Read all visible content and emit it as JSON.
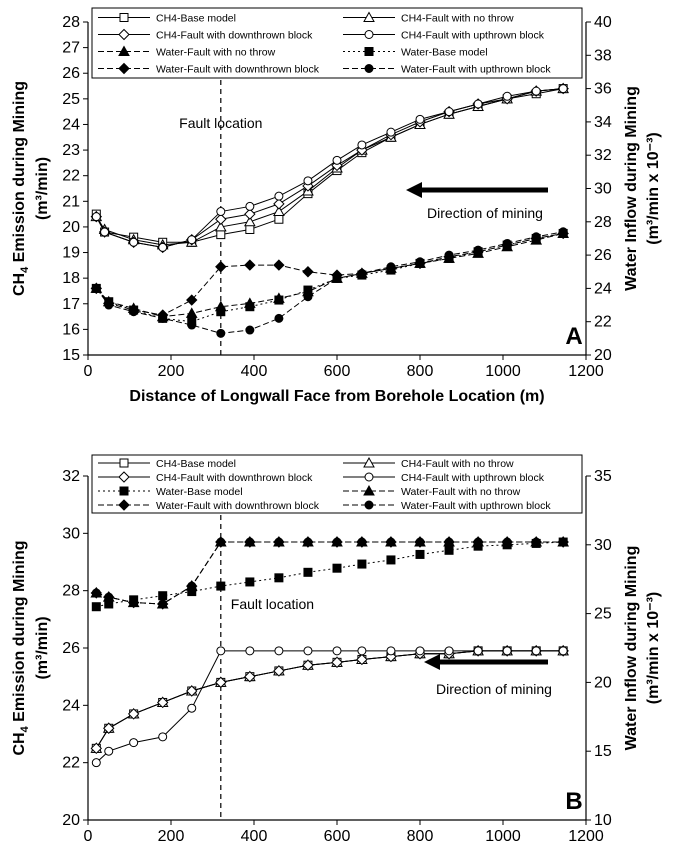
{
  "chart_data": [
    {
      "type": "line",
      "panel_label": "A",
      "xlabel": "Distance of Longwall Face from Borehole Location (m)",
      "ylabel_main": "CH",
      "ylabel_sub": "4",
      "ylabel_rest": " Emission during Mining",
      "ylabel_line2": "(m³/min)",
      "y2label": "Water Inflow during Mining",
      "y2label_line2": "(m³/min x 10⁻³)",
      "xlim": [
        0,
        1200
      ],
      "ylim": [
        15,
        28
      ],
      "y2lim": [
        20,
        40
      ],
      "xticks": [
        "0",
        "200",
        "400",
        "600",
        "800",
        "1000",
        "1200"
      ],
      "yticks": [
        "15",
        "16",
        "17",
        "18",
        "19",
        "20",
        "21",
        "22",
        "23",
        "24",
        "25",
        "26",
        "27",
        "28"
      ],
      "y2ticks": [
        "20",
        "22",
        "24",
        "26",
        "28",
        "30",
        "32",
        "34",
        "36",
        "38",
        "40"
      ],
      "fault_x": 320,
      "fault_label": "Fault location",
      "direction_label": "Direction of mining",
      "grid": false,
      "legend_position": "top",
      "series": [
        {
          "name": "CH4-Base model",
          "axis": "left",
          "marker": "square-open",
          "dash": "solid",
          "x": [
            20,
            40,
            110,
            180,
            250,
            320,
            390,
            460,
            530,
            600,
            660,
            730,
            800,
            870,
            940,
            1010,
            1080,
            1145
          ],
          "values": [
            20.5,
            19.8,
            19.6,
            19.4,
            19.4,
            19.7,
            19.9,
            20.3,
            21.3,
            22.2,
            22.9,
            23.5,
            24.0,
            24.4,
            24.7,
            25.0,
            25.2,
            25.4
          ]
        },
        {
          "name": "CH4-Fault with no throw",
          "axis": "left",
          "marker": "triangle-open",
          "dash": "solid",
          "x": [
            20,
            40,
            110,
            180,
            250,
            320,
            390,
            460,
            530,
            600,
            660,
            730,
            800,
            870,
            940,
            1010,
            1080,
            1145
          ],
          "values": [
            20.4,
            19.9,
            19.5,
            19.3,
            19.4,
            20.0,
            20.2,
            20.6,
            21.4,
            22.3,
            23.0,
            23.5,
            24.0,
            24.4,
            24.7,
            25.0,
            25.3,
            25.4
          ]
        },
        {
          "name": "CH4-Fault with downthrown block",
          "axis": "left",
          "marker": "diamond-open",
          "dash": "solid",
          "x": [
            20,
            40,
            110,
            180,
            250,
            320,
            390,
            460,
            530,
            600,
            660,
            730,
            800,
            870,
            940,
            1010,
            1080,
            1145
          ],
          "values": [
            20.4,
            19.8,
            19.4,
            19.2,
            19.5,
            20.3,
            20.5,
            20.9,
            21.6,
            22.4,
            23.0,
            23.6,
            24.1,
            24.5,
            24.8,
            25.0,
            25.3,
            25.4
          ]
        },
        {
          "name": "CH4-Fault with upthrown block",
          "axis": "left",
          "marker": "circle-open",
          "dash": "solid",
          "x": [
            20,
            40,
            110,
            180,
            250,
            320,
            390,
            460,
            530,
            600,
            660,
            730,
            800,
            870,
            940,
            1010,
            1080,
            1145
          ],
          "values": [
            20.4,
            19.8,
            19.4,
            19.2,
            19.5,
            20.6,
            20.8,
            21.2,
            21.8,
            22.6,
            23.2,
            23.7,
            24.2,
            24.5,
            24.8,
            25.1,
            25.3,
            25.4
          ]
        },
        {
          "name": "Water-Fault with no throw",
          "axis": "right",
          "marker": "triangle-filled",
          "dash": "dashed",
          "x": [
            20,
            50,
            110,
            180,
            250,
            320,
            390,
            460,
            530,
            600,
            660,
            730,
            800,
            870,
            940,
            1010,
            1080,
            1145
          ],
          "values": [
            24.0,
            23.2,
            22.8,
            22.3,
            22.5,
            22.9,
            23.1,
            23.4,
            23.8,
            24.6,
            24.9,
            25.2,
            25.5,
            25.8,
            26.1,
            26.5,
            26.9,
            27.3
          ]
        },
        {
          "name": "Water-Base model",
          "axis": "right",
          "marker": "square-filled",
          "dash": "dotted",
          "x": [
            20,
            50,
            110,
            180,
            250,
            320,
            390,
            460,
            530,
            600,
            660,
            730,
            800,
            870,
            940,
            1010,
            1080,
            1145
          ],
          "values": [
            24.0,
            23.2,
            22.7,
            22.2,
            22.0,
            22.6,
            22.9,
            23.3,
            23.9,
            24.6,
            24.8,
            25.1,
            25.5,
            25.8,
            26.2,
            26.6,
            27.0,
            27.3
          ]
        },
        {
          "name": "Water-Fault with downthrown block",
          "axis": "right",
          "marker": "diamond-filled",
          "dash": "dashed",
          "x": [
            20,
            50,
            110,
            180,
            250,
            320,
            390,
            460,
            530,
            600,
            660,
            730,
            800,
            870,
            940,
            1010,
            1080,
            1145
          ],
          "values": [
            24.0,
            23.1,
            22.7,
            22.4,
            23.3,
            25.3,
            25.4,
            25.4,
            25.0,
            24.8,
            24.9,
            25.2,
            25.5,
            25.9,
            26.2,
            26.6,
            27.0,
            27.3
          ]
        },
        {
          "name": "Water-Fault with upthrown block",
          "axis": "right",
          "marker": "circle-filled",
          "dash": "dashed",
          "x": [
            20,
            50,
            110,
            180,
            250,
            320,
            390,
            460,
            530,
            600,
            660,
            730,
            800,
            870,
            940,
            1010,
            1080,
            1145
          ],
          "values": [
            24.0,
            23.0,
            22.6,
            22.2,
            21.8,
            21.3,
            21.5,
            22.2,
            23.5,
            24.6,
            24.9,
            25.3,
            25.6,
            26.0,
            26.3,
            26.7,
            27.1,
            27.4
          ]
        }
      ]
    },
    {
      "type": "line",
      "panel_label": "B",
      "xlabel": "Distance of Longwall Face from Borehole Location (m)",
      "ylabel_main": "CH",
      "ylabel_sub": "4",
      "ylabel_rest": " Emission during Mining",
      "ylabel_line2": "(m³/min)",
      "y2label": "Water Inflow during Mining",
      "y2label_line2": "(m³/min x 10⁻³)",
      "xlim": [
        0,
        1200
      ],
      "ylim": [
        20,
        32
      ],
      "y2lim": [
        10,
        35
      ],
      "xticks": [
        "0",
        "200",
        "400",
        "600",
        "800",
        "1000",
        "1200"
      ],
      "yticks": [
        "20",
        "22",
        "24",
        "26",
        "28",
        "30",
        "32"
      ],
      "y2ticks": [
        "10",
        "15",
        "20",
        "25",
        "30",
        "35"
      ],
      "fault_x": 320,
      "fault_label": "Fault location",
      "direction_label": "Direction of mining",
      "grid": false,
      "legend_position": "top",
      "series": [
        {
          "name": "CH4-Base model",
          "axis": "left",
          "marker": "square-open",
          "dash": "solid",
          "x": [
            20,
            50,
            110,
            180,
            250,
            320,
            390,
            460,
            530,
            600,
            660,
            730,
            800,
            870,
            940,
            1010,
            1080,
            1145
          ],
          "values": [
            22.5,
            23.2,
            23.7,
            24.1,
            24.5,
            24.8,
            25.0,
            25.2,
            25.4,
            25.5,
            25.6,
            25.7,
            25.8,
            25.8,
            25.9,
            25.9,
            25.9,
            25.9
          ]
        },
        {
          "name": "CH4-Fault with no throw",
          "axis": "left",
          "marker": "triangle-open",
          "dash": "solid",
          "x": [
            20,
            50,
            110,
            180,
            250,
            320,
            390,
            460,
            530,
            600,
            660,
            730,
            800,
            870,
            940,
            1010,
            1080,
            1145
          ],
          "values": [
            22.5,
            23.2,
            23.7,
            24.1,
            24.5,
            24.8,
            25.0,
            25.2,
            25.4,
            25.5,
            25.6,
            25.7,
            25.8,
            25.8,
            25.9,
            25.9,
            25.9,
            25.9
          ]
        },
        {
          "name": "CH4-Fault with downthrown block",
          "axis": "left",
          "marker": "diamond-open",
          "dash": "solid",
          "x": [
            20,
            50,
            110,
            180,
            250,
            320,
            390,
            460,
            530,
            600,
            660,
            730,
            800,
            870,
            940,
            1010,
            1080,
            1145
          ],
          "values": [
            22.5,
            23.2,
            23.7,
            24.1,
            24.5,
            24.8,
            25.0,
            25.2,
            25.4,
            25.5,
            25.6,
            25.7,
            25.8,
            25.8,
            25.9,
            25.9,
            25.9,
            25.9
          ]
        },
        {
          "name": "CH4-Fault with upthrown block",
          "axis": "left",
          "marker": "circle-open",
          "dash": "solid",
          "x": [
            20,
            50,
            110,
            180,
            250,
            320,
            390,
            460,
            530,
            600,
            660,
            730,
            800,
            870,
            940,
            1010,
            1080,
            1145
          ],
          "values": [
            22.0,
            22.4,
            22.7,
            22.9,
            23.9,
            25.9,
            25.9,
            25.9,
            25.9,
            25.9,
            25.9,
            25.9,
            25.9,
            25.9,
            25.9,
            25.9,
            25.9,
            25.9
          ]
        },
        {
          "name": "Water-Base model",
          "axis": "right",
          "marker": "square-filled",
          "dash": "dotted",
          "x": [
            20,
            50,
            110,
            180,
            250,
            320,
            390,
            460,
            530,
            600,
            660,
            730,
            800,
            870,
            940,
            1010,
            1080,
            1145
          ],
          "values": [
            25.5,
            25.7,
            26.0,
            26.3,
            26.6,
            27.0,
            27.3,
            27.6,
            28.0,
            28.3,
            28.6,
            28.9,
            29.3,
            29.6,
            29.9,
            30.0,
            30.1,
            30.2
          ]
        },
        {
          "name": "Water-Fault with no throw",
          "axis": "right",
          "marker": "triangle-filled",
          "dash": "dashed",
          "x": [
            20,
            50,
            110,
            180,
            250,
            320,
            390,
            460,
            530,
            600,
            660,
            730,
            800,
            870,
            940,
            1010,
            1080,
            1145
          ],
          "values": [
            26.5,
            26.2,
            25.8,
            25.7,
            27.0,
            30.2,
            30.2,
            30.2,
            30.2,
            30.2,
            30.2,
            30.2,
            30.2,
            30.2,
            30.2,
            30.2,
            30.2,
            30.2
          ]
        },
        {
          "name": "Water-Fault with downthrown block",
          "axis": "right",
          "marker": "diamond-filled",
          "dash": "dashed",
          "x": [
            20,
            50,
            110,
            180,
            250,
            320,
            390,
            460,
            530,
            600,
            660,
            730,
            800,
            870,
            940,
            1010,
            1080,
            1145
          ],
          "values": [
            26.5,
            26.2,
            25.8,
            25.7,
            27.0,
            30.2,
            30.2,
            30.2,
            30.2,
            30.2,
            30.2,
            30.2,
            30.2,
            30.2,
            30.2,
            30.2,
            30.2,
            30.2
          ]
        },
        {
          "name": "Water-Fault with upthrown block",
          "axis": "right",
          "marker": "circle-filled",
          "dash": "dashed",
          "x": [
            20,
            50,
            110,
            180,
            250,
            320,
            390,
            460,
            530,
            600,
            660,
            730,
            800,
            870,
            940,
            1010,
            1080,
            1145
          ],
          "values": [
            26.5,
            26.2,
            25.8,
            25.7,
            27.0,
            30.2,
            30.2,
            30.2,
            30.2,
            30.2,
            30.2,
            30.2,
            30.2,
            30.2,
            30.2,
            30.2,
            30.2,
            30.2
          ]
        }
      ]
    }
  ]
}
